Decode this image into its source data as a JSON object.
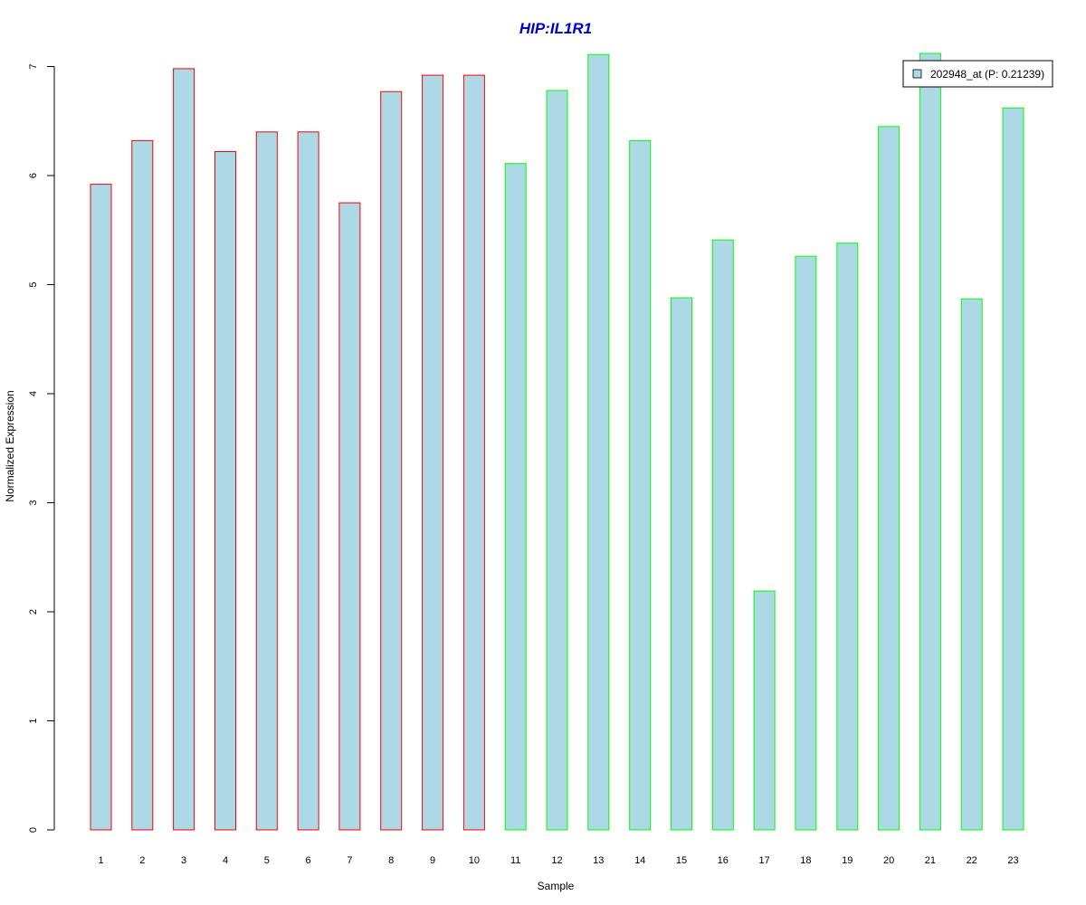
{
  "chart_data": {
    "type": "bar",
    "title": "HIP:IL1R1",
    "title_color": "#0000cc",
    "xlabel": "Sample",
    "ylabel": "Normalized Expression",
    "categories": [
      "1",
      "2",
      "3",
      "4",
      "5",
      "6",
      "7",
      "8",
      "9",
      "10",
      "11",
      "12",
      "13",
      "14",
      "15",
      "16",
      "17",
      "18",
      "19",
      "20",
      "21",
      "22",
      "23"
    ],
    "series": [
      {
        "name": "202948_at (P: 0.21239)",
        "values": [
          5.92,
          6.32,
          6.98,
          6.22,
          6.4,
          6.4,
          5.75,
          6.77,
          6.92,
          6.92,
          6.11,
          6.78,
          7.11,
          6.32,
          4.88,
          5.41,
          2.19,
          5.26,
          5.38,
          6.45,
          7.12,
          4.87,
          6.62
        ],
        "fill": "#add8e6"
      }
    ],
    "group_border_colors": [
      "#ff0000",
      "#ff0000",
      "#ff0000",
      "#ff0000",
      "#ff0000",
      "#ff0000",
      "#ff0000",
      "#ff0000",
      "#ff0000",
      "#ff0000",
      "#00ff00",
      "#00ff00",
      "#00ff00",
      "#00ff00",
      "#00ff00",
      "#00ff00",
      "#00ff00",
      "#00ff00",
      "#00ff00",
      "#00ff00",
      "#00ff00",
      "#00ff00",
      "#00ff00"
    ],
    "yticks": [
      0,
      1,
      2,
      3,
      4,
      5,
      6,
      7
    ],
    "ylim": [
      0,
      7.3
    ],
    "grid": false,
    "legend_position": "top-right"
  }
}
